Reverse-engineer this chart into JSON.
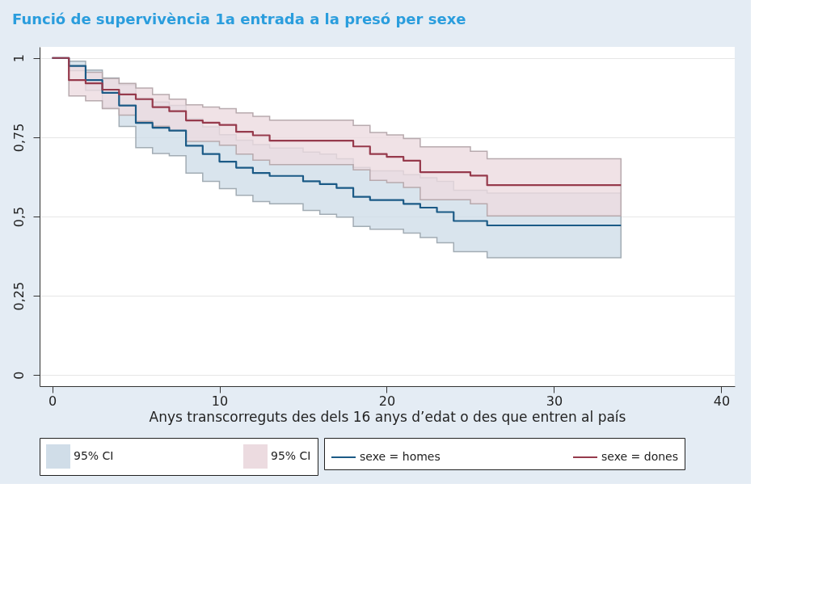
{
  "chart_data": {
    "type": "step",
    "title": "Funció de supervivència 1a entrada a la presó per sexe",
    "xlabel": "Anys transcorreguts des dels 16 anys d’edat o des que entren al país",
    "xlim": [
      -0.75,
      40.8
    ],
    "xticks": [
      0,
      10,
      20,
      30,
      40
    ],
    "ylim": [
      -0.035,
      1.035
    ],
    "yticks": [
      0,
      {
        "value": 0.25,
        "label": "0,25"
      },
      {
        "value": 0.5,
        "label": "0,5"
      },
      {
        "value": 0.75,
        "label": "0,75"
      },
      1
    ],
    "grid": "y",
    "legend": "bottom",
    "series": [
      {
        "type": "area",
        "name": "95% CI",
        "color": "#d0dde8"
      },
      {
        "type": "area",
        "name": "95% CI",
        "color": "#ecdbe0"
      },
      {
        "name": "sexe = homes",
        "color": "#1b5a86",
        "x": [
          0,
          1,
          2,
          3,
          4,
          5,
          6,
          7,
          8,
          9,
          10,
          11,
          12,
          13,
          15,
          16,
          17,
          18,
          19,
          21,
          22,
          23,
          24,
          26,
          34
        ],
        "values": [
          1,
          0.975,
          0.93,
          0.89,
          0.85,
          0.795,
          0.78,
          0.771,
          0.723,
          0.697,
          0.673,
          0.654,
          0.637,
          0.628,
          0.611,
          0.602,
          0.59,
          0.562,
          0.552,
          0.54,
          0.528,
          0.514,
          0.486,
          0.472,
          0.472
        ],
        "lower": [
          1,
          0.96,
          0.898,
          0.843,
          0.784,
          0.717,
          0.699,
          0.692,
          0.637,
          0.611,
          0.588,
          0.567,
          0.547,
          0.54,
          0.519,
          0.507,
          0.498,
          0.469,
          0.46,
          0.448,
          0.434,
          0.417,
          0.389,
          0.37,
          0.37
        ],
        "upper": [
          1,
          0.99,
          0.962,
          0.937,
          0.916,
          0.873,
          0.861,
          0.85,
          0.809,
          0.783,
          0.758,
          0.741,
          0.727,
          0.716,
          0.703,
          0.697,
          0.682,
          0.655,
          0.644,
          0.632,
          0.622,
          0.611,
          0.583,
          0.574,
          0.574
        ]
      },
      {
        "name": "sexe = dones",
        "color": "#963a4c",
        "x": [
          0,
          1,
          2,
          3,
          4,
          5,
          6,
          7,
          8,
          9,
          10,
          11,
          12,
          13,
          18,
          19,
          20,
          21,
          22,
          25,
          26,
          34
        ],
        "values": [
          1,
          0.93,
          0.92,
          0.9,
          0.885,
          0.87,
          0.845,
          0.832,
          0.803,
          0.796,
          0.789,
          0.767,
          0.756,
          0.739,
          0.721,
          0.697,
          0.688,
          0.676,
          0.64,
          0.629,
          0.599,
          0.599
        ],
        "lower": [
          1,
          0.88,
          0.865,
          0.84,
          0.82,
          0.8,
          0.785,
          0.77,
          0.737,
          0.737,
          0.725,
          0.697,
          0.678,
          0.664,
          0.647,
          0.614,
          0.607,
          0.592,
          0.553,
          0.54,
          0.502,
          0.502
        ],
        "upper": [
          1,
          0.975,
          0.955,
          0.935,
          0.92,
          0.905,
          0.885,
          0.87,
          0.852,
          0.845,
          0.84,
          0.827,
          0.816,
          0.804,
          0.787,
          0.765,
          0.757,
          0.746,
          0.72,
          0.706,
          0.682,
          0.682
        ]
      }
    ]
  }
}
